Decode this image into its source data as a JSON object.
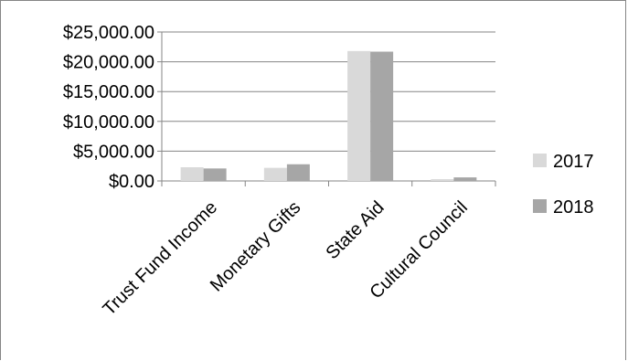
{
  "chart_data": {
    "type": "bar",
    "categories": [
      "Trust Fund Income",
      "Monetary Gifts",
      "State Aid",
      "Cultural Council"
    ],
    "series": [
      {
        "name": "2017",
        "values": [
          2300,
          2200,
          21800,
          300
        ],
        "color": "#d9d9d9"
      },
      {
        "name": "2018",
        "values": [
          2100,
          2800,
          21700,
          600
        ],
        "color": "#a6a6a6"
      }
    ],
    "ylim": [
      0,
      25000
    ],
    "yticks": [
      "$0.00",
      "$5,000.00",
      "$10,000.00",
      "$15,000.00",
      "$20,000.00",
      "$25,000.00"
    ],
    "gridlines": true,
    "legend_position": "right"
  }
}
